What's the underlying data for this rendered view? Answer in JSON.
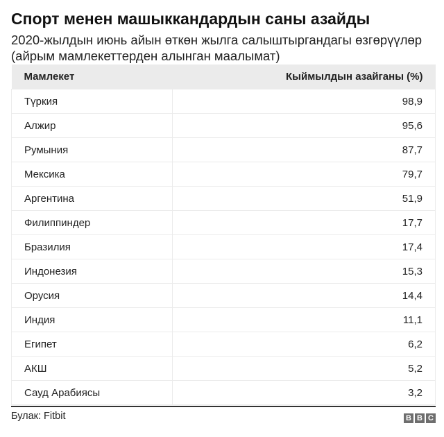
{
  "title": "Спорт менен машыккандардын саны азайды",
  "subtitle": "2020-жылдын июнь айын өткөн жылга салыштыргандагы өзгөрүүлөр (айрым мамлекеттерден алынган маалымат)",
  "source": "Булак: Fitbit",
  "logo": "BBC",
  "chart_data": {
    "type": "table",
    "columns": [
      "Мамлекет",
      "Кыймылдын азайганы (%)"
    ],
    "rows": [
      [
        "Түркия",
        "98,9"
      ],
      [
        "Алжир",
        "95,6"
      ],
      [
        "Румыния",
        "87,7"
      ],
      [
        "Мексика",
        "79,7"
      ],
      [
        "Аргентина",
        "51,9"
      ],
      [
        "Филиппиндер",
        "17,7"
      ],
      [
        "Бразилия",
        "17,4"
      ],
      [
        "Индонезия",
        "15,3"
      ],
      [
        "Орусия",
        "14,4"
      ],
      [
        "Индия",
        "11,1"
      ],
      [
        "Египет",
        "6,2"
      ],
      [
        "АКШ",
        "5,2"
      ],
      [
        "Сауд Арабиясы",
        "3,2"
      ]
    ]
  }
}
